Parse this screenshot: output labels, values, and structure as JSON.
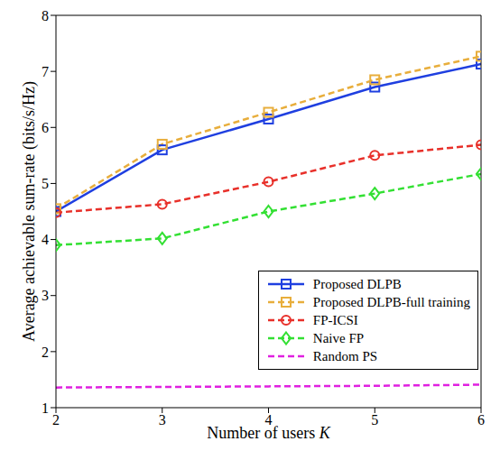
{
  "chart_data": {
    "type": "line",
    "x_label": "Number of users K",
    "y_label": "Average achievable sum-rate (bits/s/Hz)",
    "x": [
      2,
      3,
      4,
      5,
      6
    ],
    "xlim": [
      2,
      6
    ],
    "xticks": [
      2,
      3,
      4,
      5,
      6
    ],
    "ylim": [
      1,
      8
    ],
    "yticks": [
      1,
      2,
      3,
      4,
      5,
      6,
      7,
      8
    ],
    "grid": false,
    "legend": "lower right",
    "series": [
      {
        "name": "Proposed DLPB",
        "color": "#1f3fe0",
        "marker": "square",
        "line_style": "solid",
        "values": [
          4.5,
          5.6,
          6.15,
          6.72,
          7.13
        ]
      },
      {
        "name": "Proposed DLPB-full training",
        "color": "#e8ae3c",
        "marker": "square",
        "line_style": "dashed",
        "values": [
          4.55,
          5.7,
          6.27,
          6.85,
          7.27
        ]
      },
      {
        "name": "FP-ICSI",
        "color": "#e8302a",
        "marker": "circle",
        "line_style": "dashed",
        "values": [
          4.48,
          4.63,
          5.03,
          5.5,
          5.69
        ]
      },
      {
        "name": "Naive FP",
        "color": "#33e033",
        "marker": "diamond",
        "line_style": "dashed",
        "values": [
          3.9,
          4.02,
          4.5,
          4.82,
          5.17
        ]
      },
      {
        "name": "Random PS",
        "color": "#e020e0",
        "marker": "none",
        "line_style": "dashed",
        "values": [
          1.36,
          1.37,
          1.38,
          1.39,
          1.41
        ]
      }
    ]
  }
}
